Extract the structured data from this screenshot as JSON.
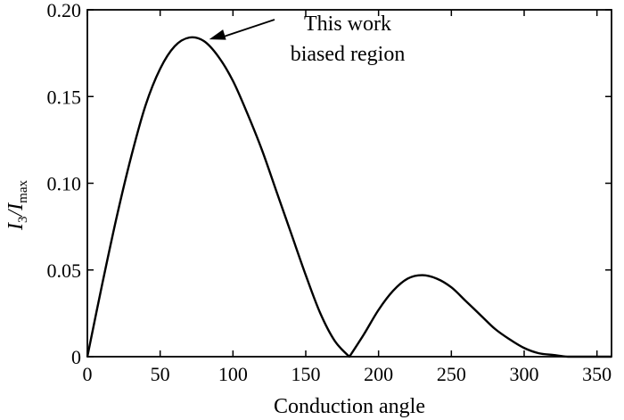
{
  "chart_data": {
    "type": "line",
    "xlabel": "Conduction angle",
    "ylabel": {
      "main": "I",
      "sub1": "3",
      "sep": "/I",
      "sub2": "max"
    },
    "xlim": [
      0,
      360
    ],
    "ylim": [
      0,
      0.2
    ],
    "x_ticks": [
      0,
      50,
      100,
      150,
      200,
      250,
      300,
      350
    ],
    "x_tick_labels": [
      "0",
      "50",
      "100",
      "150",
      "200",
      "250",
      "300",
      "350"
    ],
    "y_ticks": [
      0,
      0.05,
      0.1,
      0.15,
      0.2
    ],
    "y_tick_labels": [
      "0",
      "0.05",
      "0.10",
      "0.15",
      "0.20"
    ],
    "grid": false,
    "series": [
      {
        "x": [
          0,
          10,
          20,
          30,
          40,
          50,
          60,
          70,
          80,
          90,
          100,
          110,
          120,
          130,
          140,
          150,
          160,
          170,
          180,
          190,
          200,
          210,
          220,
          230,
          240,
          250,
          260,
          270,
          280,
          290,
          300,
          310,
          320,
          330,
          340,
          350,
          360
        ],
        "y": [
          0,
          0.041,
          0.08,
          0.115,
          0.145,
          0.166,
          0.179,
          0.184,
          0.182,
          0.173,
          0.159,
          0.14,
          0.119,
          0.095,
          0.071,
          0.047,
          0.025,
          0.009,
          0.0,
          0.013,
          0.027,
          0.038,
          0.045,
          0.047,
          0.045,
          0.04,
          0.032,
          0.024,
          0.016,
          0.01,
          0.005,
          0.002,
          0.001,
          0.0,
          0.0,
          0.0,
          0.0
        ]
      }
    ],
    "annotations": [
      {
        "lines": [
          "This work",
          "biased region"
        ],
        "arrow_to": [
          80,
          0.184
        ]
      }
    ]
  }
}
